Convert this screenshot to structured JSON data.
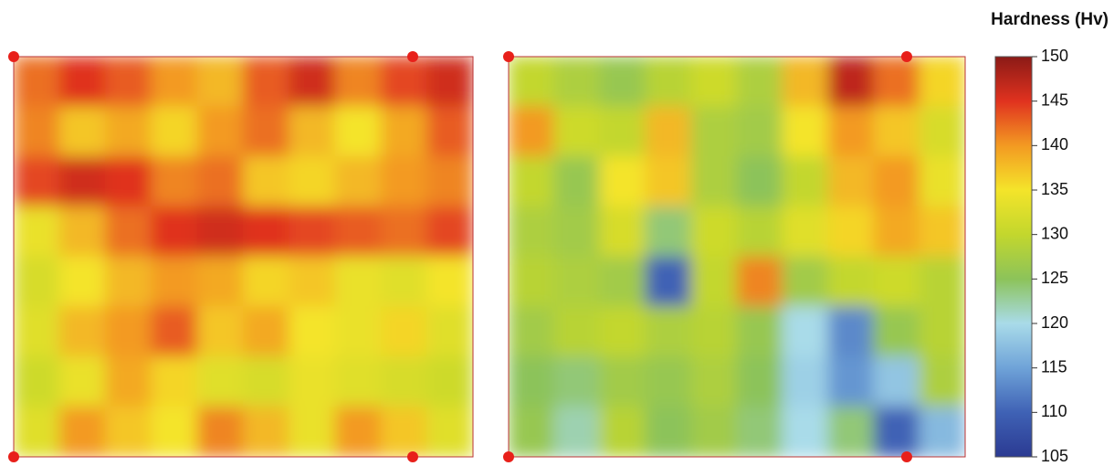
{
  "chart_data": {
    "type": "heatmap",
    "title": "Hardness (Hv)",
    "clim": [
      105,
      150
    ],
    "cticks": [
      105,
      110,
      115,
      120,
      125,
      130,
      135,
      140,
      145,
      150
    ],
    "colormap": [
      "#2b3a92",
      "#3f62b5",
      "#6fa3d8",
      "#a9dbe9",
      "#8cc35a",
      "#c3d72d",
      "#f4e42a",
      "#f39a22",
      "#e0321f",
      "#8b1a16"
    ],
    "maps": [
      {
        "values": [
          [
            142,
            145,
            143,
            140,
            138,
            143,
            146,
            141,
            144,
            146
          ],
          [
            141,
            137,
            139,
            136,
            140,
            142,
            138,
            135,
            139,
            143
          ],
          [
            144,
            146,
            145,
            141,
            142,
            137,
            136,
            138,
            140,
            141
          ],
          [
            134,
            138,
            142,
            145,
            146,
            145,
            144,
            143,
            142,
            144
          ],
          [
            132,
            135,
            138,
            140,
            139,
            136,
            137,
            134,
            133,
            135
          ],
          [
            133,
            138,
            140,
            143,
            137,
            139,
            135,
            134,
            136,
            133
          ],
          [
            131,
            134,
            139,
            136,
            133,
            132,
            134,
            133,
            132,
            131
          ],
          [
            133,
            140,
            137,
            135,
            141,
            138,
            134,
            140,
            137,
            133
          ]
        ]
      },
      {
        "values": [
          [
            130,
            128,
            126,
            129,
            131,
            128,
            138,
            147,
            142,
            136
          ],
          [
            140,
            131,
            130,
            138,
            128,
            127,
            135,
            140,
            137,
            132
          ],
          [
            130,
            126,
            135,
            137,
            128,
            125,
            130,
            138,
            140,
            134
          ],
          [
            128,
            127,
            132,
            124,
            131,
            129,
            133,
            136,
            139,
            137
          ],
          [
            129,
            128,
            127,
            110,
            130,
            141,
            127,
            130,
            131,
            129
          ],
          [
            127,
            129,
            130,
            128,
            129,
            126,
            120,
            113,
            126,
            129
          ],
          [
            125,
            124,
            127,
            126,
            128,
            125,
            119,
            114,
            118,
            128
          ],
          [
            126,
            122,
            129,
            125,
            127,
            124,
            120,
            124,
            110,
            117
          ]
        ]
      }
    ]
  }
}
